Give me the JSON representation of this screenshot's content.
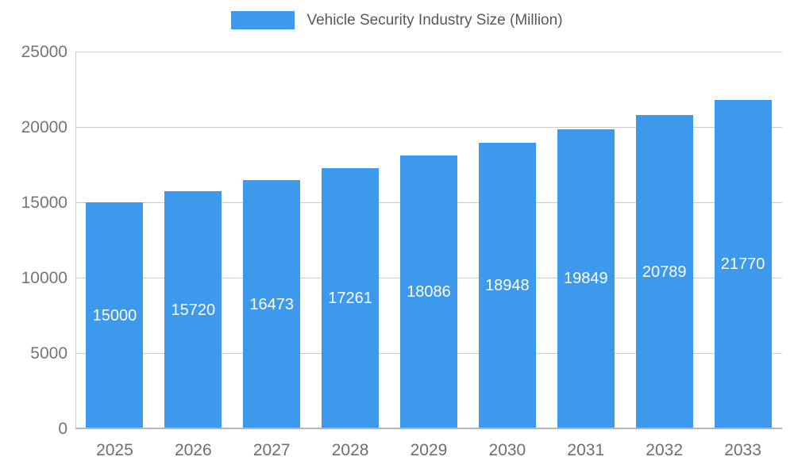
{
  "legend": {
    "label": "Vehicle Security Industry Size (Million)",
    "swatch_color": "#3d99ec"
  },
  "chart_data": {
    "type": "bar",
    "title": "Vehicle Security Industry Size (Million)",
    "categories": [
      "2025",
      "2026",
      "2027",
      "2028",
      "2029",
      "2030",
      "2031",
      "2032",
      "2033"
    ],
    "values": [
      15000,
      15720,
      16473,
      17261,
      18086,
      18948,
      19849,
      20789,
      21770
    ],
    "xlabel": "",
    "ylabel": "",
    "ylim": [
      0,
      25000
    ],
    "yticks": [
      0,
      5000,
      10000,
      15000,
      20000,
      25000
    ],
    "grid": true,
    "legend_position": "top",
    "bar_color": "#3d99ec",
    "value_label_color": "#ffffff",
    "value_labels_inside": true
  }
}
